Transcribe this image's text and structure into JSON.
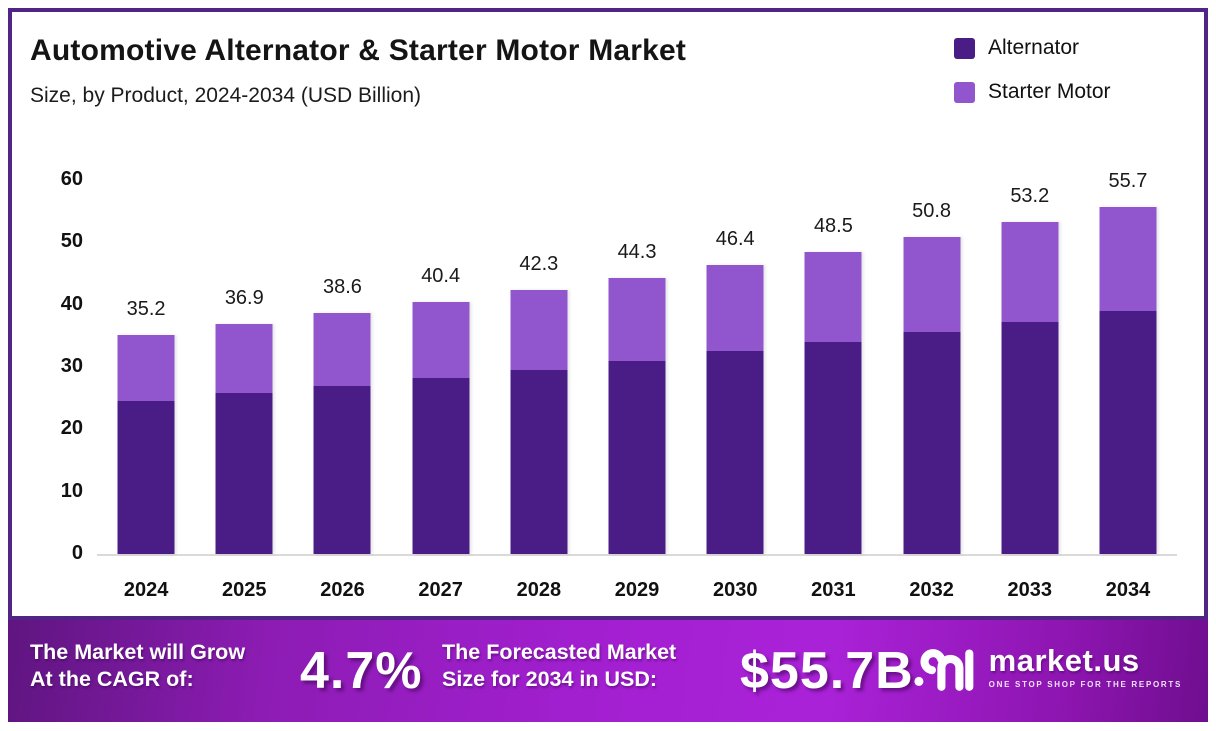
{
  "header": {
    "title": "Automotive Alternator & Starter Motor Market",
    "subtitle": "Size, by Product, 2024-2034 (USD Billion)"
  },
  "chart_data": {
    "type": "bar",
    "stacked": true,
    "title": "Automotive Alternator & Starter Motor Market Size, by Product, 2024-2034 (USD Billion)",
    "categories": [
      2024,
      2025,
      2026,
      2027,
      2028,
      2029,
      2030,
      2031,
      2032,
      2033,
      2034
    ],
    "series": [
      {
        "name": "Alternator",
        "color": "#4a1d86",
        "values": [
          24.6,
          25.8,
          27.0,
          28.3,
          29.6,
          31.0,
          32.5,
          34.0,
          35.6,
          37.2,
          39.0
        ]
      },
      {
        "name": "Starter Motor",
        "color": "#9156cd",
        "values": [
          10.6,
          11.1,
          11.6,
          12.1,
          12.7,
          13.3,
          13.9,
          14.5,
          15.2,
          16.0,
          16.7
        ]
      }
    ],
    "totals": [
      35.2,
      36.9,
      38.6,
      40.4,
      42.3,
      44.3,
      46.4,
      48.5,
      50.8,
      53.2,
      55.7
    ],
    "xlabel": "",
    "ylabel": "",
    "ylim": [
      0,
      60
    ],
    "yticks": [
      0,
      10,
      20,
      30,
      40,
      50,
      60
    ],
    "grid": false,
    "legend_position": "top-right",
    "data_labels": "total above each bar"
  },
  "banner": {
    "cagr_label_line1": "The Market will Grow",
    "cagr_label_line2": "At the CAGR of:",
    "cagr_value": "4.7%",
    "forecast_label_line1": "The Forecasted Market",
    "forecast_label_line2": "Size for 2034 in USD:",
    "forecast_value": "$55.7B",
    "logo_name": "market.us",
    "logo_tagline": "ONE STOP SHOP FOR THE REPORTS"
  },
  "colors": {
    "card_border": "#512585",
    "alternator": "#4a1d86",
    "starter_motor": "#9156cd",
    "axis_line": "#dadada",
    "banner_gradient_left": "#5f1580",
    "banner_gradient_mid": "#a21fd0",
    "banner_gradient_right": "#6f0e8f",
    "text": "#141414"
  }
}
